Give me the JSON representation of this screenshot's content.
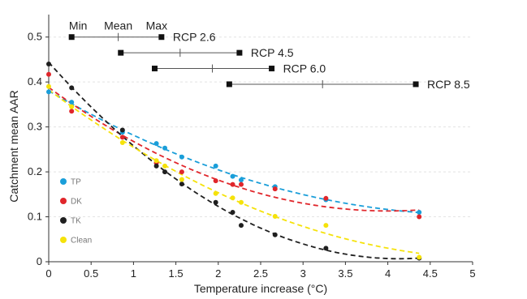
{
  "chart_data": {
    "type": "scatter",
    "title": "",
    "xlabel": "Temperature increase (°C)",
    "ylabel": "Catchment mean AAR",
    "xlim": [
      0,
      5
    ],
    "ylim": [
      0,
      0.55
    ],
    "x_ticks": [
      "0",
      "0.5",
      "1",
      "1.5",
      "2",
      "2.5",
      "3",
      "3.5",
      "4",
      "4.5",
      "5"
    ],
    "y_ticks": [
      "0",
      "0.1",
      "0.2",
      "0.3",
      "0.4",
      "0.5"
    ],
    "grid": "horizontal dashed",
    "legend": {
      "placement": "left-bottom",
      "entries": [
        "TP",
        "DK",
        "TK",
        "Clean"
      ]
    },
    "series": [
      {
        "name": "TP",
        "color": "#1a9ed9",
        "trend": "dashed",
        "points": [
          [
            0,
            0.378
          ],
          [
            0.27,
            0.355
          ],
          [
            0.87,
            0.288
          ],
          [
            1.27,
            0.263
          ],
          [
            1.37,
            0.253
          ],
          [
            1.57,
            0.233
          ],
          [
            1.97,
            0.213
          ],
          [
            2.17,
            0.19
          ],
          [
            2.27,
            0.182
          ],
          [
            2.67,
            0.167
          ],
          [
            3.27,
            0.138
          ],
          [
            4.37,
            0.11
          ]
        ]
      },
      {
        "name": "DK",
        "color": "#e0262b",
        "trend": "dashed",
        "points": [
          [
            0,
            0.417
          ],
          [
            0.27,
            0.335
          ],
          [
            0.87,
            0.277
          ],
          [
            1.27,
            0.22
          ],
          [
            1.57,
            0.2
          ],
          [
            1.97,
            0.18
          ],
          [
            2.17,
            0.172
          ],
          [
            2.27,
            0.172
          ],
          [
            2.67,
            0.162
          ],
          [
            3.27,
            0.141
          ],
          [
            4.37,
            0.1
          ]
        ]
      },
      {
        "name": "TK",
        "color": "#1f1f1f",
        "trend": "dashed",
        "points": [
          [
            0,
            0.44
          ],
          [
            0.27,
            0.387
          ],
          [
            0.87,
            0.293
          ],
          [
            1.27,
            0.213
          ],
          [
            1.37,
            0.2
          ],
          [
            1.57,
            0.173
          ],
          [
            1.97,
            0.132
          ],
          [
            2.17,
            0.11
          ],
          [
            2.27,
            0.081
          ],
          [
            2.67,
            0.06
          ],
          [
            3.27,
            0.03
          ],
          [
            4.37,
            0.008
          ]
        ]
      },
      {
        "name": "Clean",
        "color": "#f5e20a",
        "trend": "dashed",
        "points": [
          [
            0,
            0.39
          ],
          [
            0.27,
            0.345
          ],
          [
            0.87,
            0.265
          ],
          [
            1.27,
            0.225
          ],
          [
            1.37,
            0.213
          ],
          [
            1.57,
            0.183
          ],
          [
            1.97,
            0.152
          ],
          [
            2.17,
            0.142
          ],
          [
            2.27,
            0.132
          ],
          [
            2.67,
            0.101
          ],
          [
            3.27,
            0.081
          ],
          [
            4.37,
            0.01
          ]
        ]
      }
    ],
    "ranges": {
      "header": {
        "min_label": "Min",
        "mean_label": "Mean",
        "max_label": "Max"
      },
      "items": [
        {
          "label": "RCP 2.6",
          "y": 0.5,
          "min": 0.27,
          "mean": 0.82,
          "max": 1.33
        },
        {
          "label": "RCP 4.5",
          "y": 0.465,
          "min": 0.85,
          "mean": 1.55,
          "max": 2.25
        },
        {
          "label": "RCP 6.0",
          "y": 0.43,
          "min": 1.25,
          "mean": 1.93,
          "max": 2.63
        },
        {
          "label": "RCP 8.5",
          "y": 0.395,
          "min": 2.13,
          "mean": 3.23,
          "max": 4.33
        }
      ]
    }
  }
}
